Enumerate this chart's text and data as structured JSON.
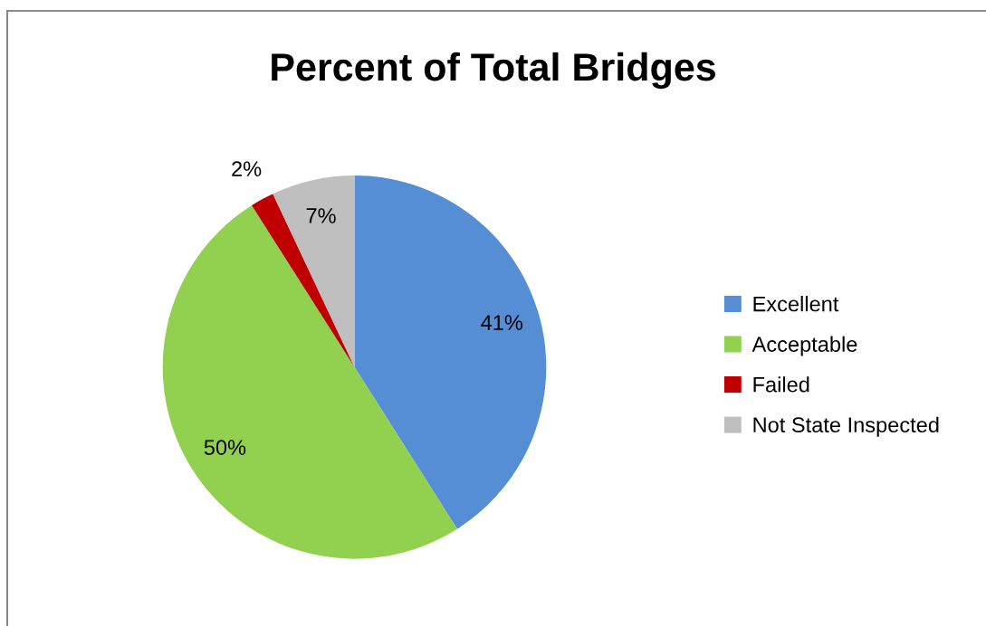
{
  "chart_data": {
    "type": "pie",
    "title": "Percent of Total Bridges",
    "categories": [
      "Excellent",
      "Acceptable",
      "Failed",
      "Not State Inspected"
    ],
    "values": [
      41,
      50,
      2,
      7
    ],
    "colors": [
      "#558ed5",
      "#92d050",
      "#c00000",
      "#bfbfbf"
    ],
    "value_labels": [
      "41%",
      "50%",
      "2%",
      "7%"
    ],
    "legend": "right"
  }
}
